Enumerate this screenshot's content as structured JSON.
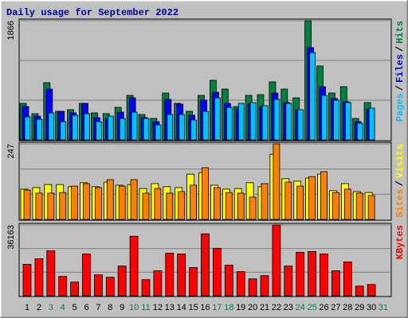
{
  "title": "Daily usage for September 2022",
  "label_separator": "/",
  "chart_data": [
    {
      "type": "bar",
      "series": [
        {
          "name": "Hits",
          "color": "#008040",
          "values": [
            572,
            411,
            896,
            448,
            473,
            572,
            423,
            411,
            510,
            697,
            398,
            336,
            734,
            572,
            448,
            697,
            933,
            796,
            522,
            697,
            709,
            908,
            796,
            659,
            1866,
            1157,
            734,
            833,
            336,
            585,
            null
          ]
        },
        {
          "name": "Files",
          "color": "#0000ff",
          "values": [
            522,
            373,
            796,
            448,
            423,
            572,
            348,
            336,
            435,
            659,
            348,
            286,
            634,
            560,
            386,
            622,
            746,
            572,
            485,
            572,
            522,
            734,
            585,
            473,
            1443,
            833,
            647,
            597,
            286,
            485,
            null
          ]
        },
        {
          "name": "Pages",
          "color": "#00c0ff",
          "values": [
            361,
            323,
            423,
            286,
            386,
            411,
            286,
            373,
            336,
            435,
            336,
            236,
            398,
            398,
            311,
            448,
            659,
            510,
            572,
            585,
            535,
            634,
            572,
            473,
            1368,
            697,
            622,
            585,
            261,
            498,
            null
          ]
        }
      ],
      "ylim": [
        0,
        1866
      ],
      "yticks": [
        1866
      ]
    },
    {
      "type": "bar",
      "series": [
        {
          "name": "Visits",
          "color": "#ffff00",
          "values": [
            99,
            104,
            114,
            114,
            107,
            120,
            107,
            122,
            112,
            114,
            101,
            117,
            107,
            104,
            148,
            153,
            112,
            99,
            101,
            120,
            107,
            213,
            133,
            125,
            135,
            148,
            94,
            117,
            91,
            88,
            null
          ]
        },
        {
          "name": "Sites",
          "color": "#ff8000",
          "values": [
            96,
            86,
            86,
            88,
            109,
            117,
            104,
            130,
            109,
            130,
            86,
            101,
            86,
            91,
            112,
            169,
            104,
            88,
            86,
            73,
            117,
            247,
            122,
            109,
            140,
            156,
            88,
            99,
            86,
            78,
            null
          ]
        }
      ],
      "ylim": [
        0,
        247
      ],
      "yticks": [
        247
      ]
    },
    {
      "type": "bar",
      "series": [
        {
          "name": "KBytes",
          "color": "#ff0000",
          "values": [
            16029,
            18906,
            23016,
            9864,
            6987,
            21372,
            10686,
            9453,
            15207,
            30414,
            8220,
            12741,
            21783,
            21372,
            14385,
            31647,
            24249,
            15618,
            12330,
            8631,
            10275,
            36163,
            15207,
            22194,
            22605,
            21372,
            12741,
            17262,
            4932,
            5754,
            null
          ]
        }
      ],
      "ylim": [
        0,
        36163
      ],
      "yticks": [
        36163
      ],
      "categories": [
        "1",
        "2",
        "3",
        "4",
        "5",
        "6",
        "7",
        "8",
        "9",
        "10",
        "11",
        "12",
        "13",
        "14",
        "15",
        "16",
        "17",
        "18",
        "19",
        "20",
        "21",
        "22",
        "23",
        "24",
        "25",
        "26",
        "27",
        "28",
        "29",
        "30",
        "31"
      ],
      "weekend_indices": [
        2,
        3,
        9,
        10,
        16,
        17,
        23,
        24,
        30
      ],
      "weekend_color": "#00805c"
    }
  ]
}
